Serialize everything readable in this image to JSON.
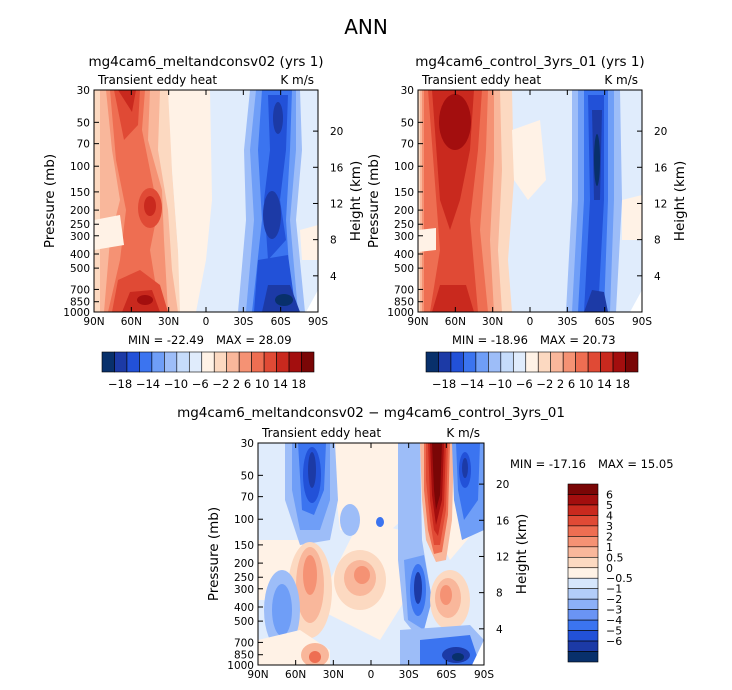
{
  "figure_title": "ANN",
  "chart_data": [
    {
      "type": "heatmap",
      "title": "mg4cam6_meltandconsv02 (yrs 1)",
      "left_label": "Transient eddy heat",
      "right_label": "K m/s",
      "ylabel": "Pressure (mb)",
      "ylabel2": "Height (km)",
      "x_ticks": [
        "90N",
        "60N",
        "30N",
        "0",
        "30S",
        "60S",
        "90S"
      ],
      "y_ticks": [
        "30",
        "50",
        "70",
        "100",
        "150",
        "200",
        "250",
        "300",
        "400",
        "500",
        "700",
        "850",
        "1000"
      ],
      "height_ticks": [
        "20",
        "16",
        "12",
        "8",
        "4"
      ],
      "min_label": "MIN = -22.49",
      "max_label": "MAX = 28.09",
      "colorbar_levels": [
        "-18",
        "-14",
        "-10",
        "-6",
        "-2",
        "2",
        "6",
        "10",
        "14",
        "18"
      ],
      "colorbar_label_text": "−18 −14 −10 −6 −2 2 6 10 14 18",
      "colorbar_colors": [
        "#08306b",
        "#1c3aa6",
        "#2251d8",
        "#3b74f0",
        "#6f9ef7",
        "#9dbdf8",
        "#c6dcfb",
        "#e0ecfc",
        "#fff2e6",
        "#fcd9c1",
        "#f9b79b",
        "#f59274",
        "#ee6e52",
        "#e04a35",
        "#c9291e",
        "#a30e0e",
        "#7a0606"
      ],
      "regions": [
        {
          "x": 60,
          "p": 40,
          "value": 14
        },
        {
          "x": 68,
          "p": 200,
          "value": 10
        },
        {
          "x": 55,
          "p": 800,
          "value": 18
        },
        {
          "x": 10,
          "p": 100,
          "value": 1
        },
        {
          "x": -25,
          "p": 600,
          "value": -2
        },
        {
          "x": -60,
          "p": 300,
          "value": -14
        },
        {
          "x": -55,
          "p": 50,
          "value": -12
        },
        {
          "x": -62,
          "p": 900,
          "value": -20
        }
      ]
    },
    {
      "type": "heatmap",
      "title": "mg4cam6_control_3yrs_01 (yrs 1)",
      "left_label": "Transient eddy heat",
      "right_label": "K m/s",
      "ylabel": "Pressure (mb)",
      "ylabel2": "Height (km)",
      "x_ticks": [
        "90N",
        "60N",
        "30N",
        "0",
        "30S",
        "60S",
        "90S"
      ],
      "y_ticks": [
        "30",
        "50",
        "70",
        "100",
        "150",
        "200",
        "250",
        "300",
        "400",
        "500",
        "700",
        "850",
        "1000"
      ],
      "height_ticks": [
        "20",
        "16",
        "12",
        "8",
        "4"
      ],
      "min_label": "MIN = -18.96",
      "max_label": "MAX = 20.73",
      "colorbar_levels": [
        "-18",
        "-14",
        "-10",
        "-6",
        "-2",
        "2",
        "6",
        "10",
        "14",
        "18"
      ],
      "colorbar_label_text": "−18 −14 −10 −6 −2 2 6 10 14 18",
      "colorbar_colors": [
        "#08306b",
        "#1c3aa6",
        "#2251d8",
        "#3b74f0",
        "#6f9ef7",
        "#9dbdf8",
        "#c6dcfb",
        "#e0ecfc",
        "#fff2e6",
        "#fcd9c1",
        "#f9b79b",
        "#f59274",
        "#ee6e52",
        "#e04a35",
        "#c9291e",
        "#a30e0e",
        "#7a0606"
      ],
      "regions": [
        {
          "x": 62,
          "p": 60,
          "value": 18
        },
        {
          "x": 60,
          "p": 250,
          "value": 12
        },
        {
          "x": 58,
          "p": 800,
          "value": 16
        },
        {
          "x": -10,
          "p": 400,
          "value": -1
        },
        {
          "x": -58,
          "p": 100,
          "value": -18
        },
        {
          "x": -60,
          "p": 500,
          "value": -12
        },
        {
          "x": -62,
          "p": 900,
          "value": -16
        }
      ]
    },
    {
      "type": "heatmap",
      "title": "mg4cam6_meltandconsv02 − mg4cam6_control_3yrs_01",
      "left_label": "Transient eddy heat",
      "right_label": "K m/s",
      "ylabel": "Pressure (mb)",
      "ylabel2": "Height (km)",
      "x_ticks": [
        "90N",
        "60N",
        "30N",
        "0",
        "30S",
        "60S",
        "90S"
      ],
      "y_ticks": [
        "30",
        "50",
        "70",
        "100",
        "150",
        "200",
        "250",
        "300",
        "400",
        "500",
        "700",
        "850",
        "1000"
      ],
      "height_ticks": [
        "20",
        "16",
        "12",
        "8",
        "4"
      ],
      "min_label": "MIN = -17.16",
      "max_label": "MAX =  15.05",
      "colorbar_levels": [
        "6",
        "5",
        "4",
        "3",
        "2",
        "1",
        "0.5",
        "0",
        "−0.5",
        "−1",
        "−2",
        "−3",
        "−4",
        "−5",
        "−6"
      ],
      "colorbar_colors": [
        "#7a0606",
        "#a30e0e",
        "#c9291e",
        "#e04a35",
        "#ee6e52",
        "#f59274",
        "#f9b79b",
        "#fcd9c1",
        "#fff2e6",
        "#d6e6fc",
        "#b3cdf9",
        "#8cb0f7",
        "#6a94f4",
        "#3b74f0",
        "#2251d8",
        "#1c3aa6",
        "#08306b"
      ],
      "regions": [
        {
          "x": -52,
          "p": 60,
          "value": 8
        },
        {
          "x": 55,
          "p": 50,
          "value": -5
        },
        {
          "x": 65,
          "p": 350,
          "value": -3
        },
        {
          "x": 45,
          "p": 200,
          "value": 2
        },
        {
          "x": 5,
          "p": 220,
          "value": 1
        },
        {
          "x": -40,
          "p": 300,
          "value": -5
        },
        {
          "x": -60,
          "p": 350,
          "value": 3
        },
        {
          "x": -65,
          "p": 900,
          "value": -6
        }
      ]
    }
  ]
}
